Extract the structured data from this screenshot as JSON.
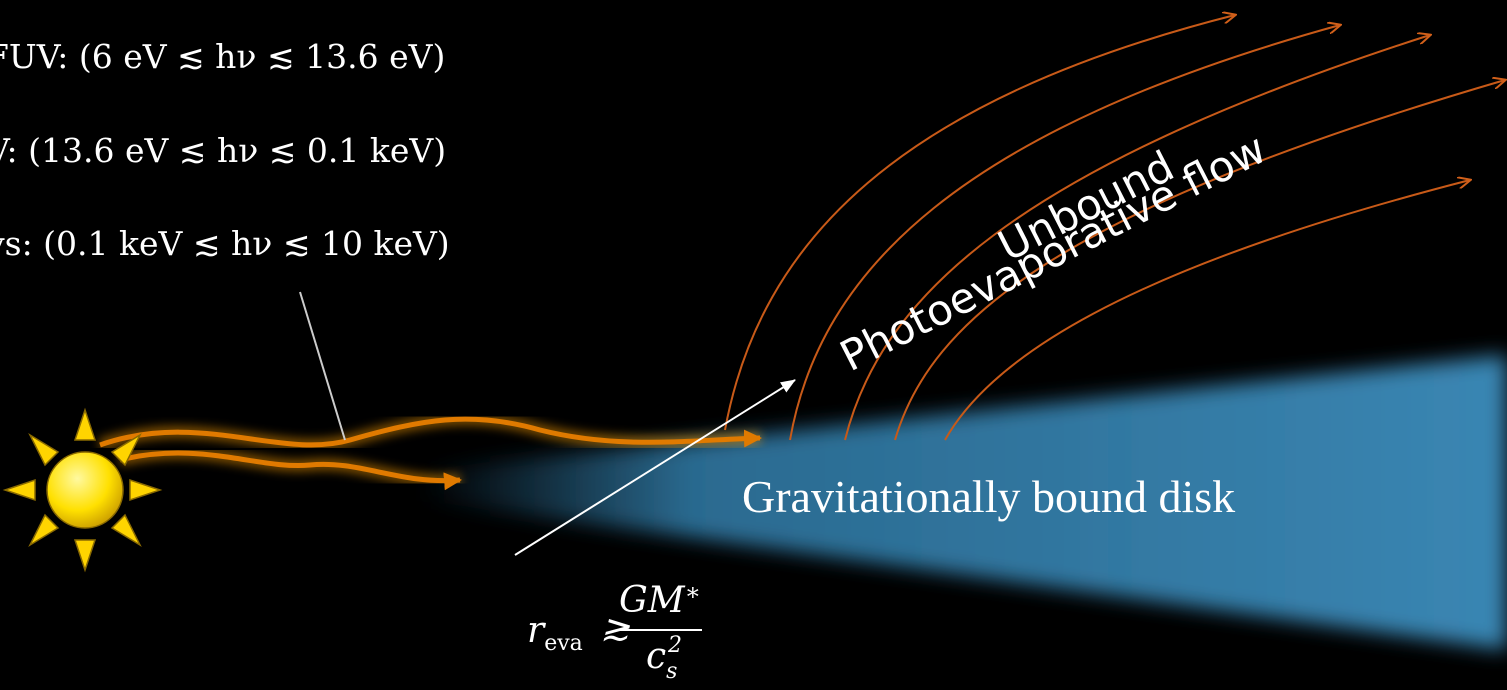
{
  "energy_bands": [
    "FUV: (6 eV ≲ hν ≲ 13.6 eV)",
    "V: (13.6 eV ≲ hν ≲ 0.1 keV)",
    "ys: (0.1 keV ≲ hν ≲ 10 keV)"
  ],
  "flow_labels": {
    "line1": "Unbound",
    "line2": "Photoevaporative flow"
  },
  "disk_label": "Gravitationally bound disk",
  "formula": {
    "lhs": "r",
    "lhs_sub": "eva",
    "relation": "≳",
    "numerator": "GM",
    "numerator_sub": "∗",
    "denominator": "c",
    "denominator_sub": "s",
    "denominator_sup": "2"
  }
}
